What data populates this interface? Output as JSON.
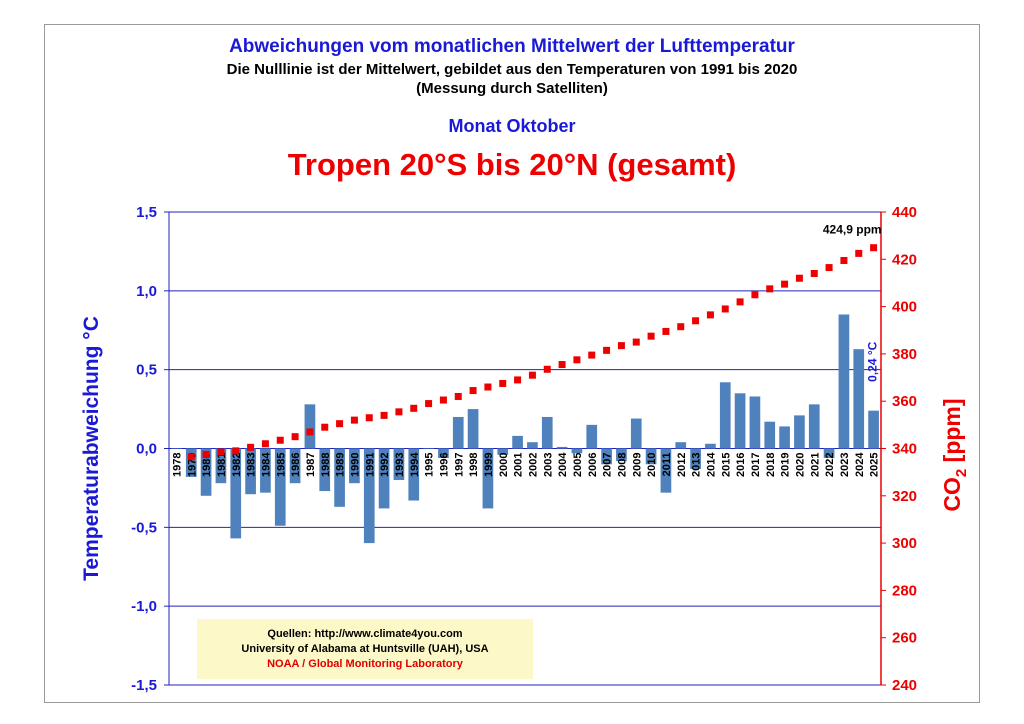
{
  "title": "Abweichungen vom monatlichen Mittelwert der Lufttemperatur",
  "subtitle_1": "Die Nulllinie ist der Mittelwert, gebildet aus den Temperaturen von 1991 bis 2020",
  "subtitle_2": "(Messung durch Satelliten)",
  "month_title": "Monat Oktober",
  "region_title": "Tropen 20°S bis 20°N  (gesamt)",
  "sources": {
    "line1": "Quellen: http://www.climate4you.com",
    "line2": "University of Alabama at Huntsville (UAH), USA",
    "line3": "NOAA / Global Monitoring Laboratory"
  },
  "colors": {
    "bar": "#4f81bd",
    "co2": "#ee0000",
    "axis_left": "#1a1ad6",
    "axis_right": "#ee0000",
    "grid": "#2222bb",
    "source_bg": "#fdf8c8"
  },
  "chart_data": {
    "type": "bar",
    "ylabel": "Temperaturabweichung °C",
    "y2label_main": "CO",
    "y2label_sub": "2",
    "y2label_unit": " [ppm]",
    "ylim": [
      -1.5,
      1.5
    ],
    "y_ticks": [
      "1,5",
      "1,0",
      "0,5",
      "0,0",
      "-0,5",
      "-1,0",
      "-1,5"
    ],
    "y2lim": [
      240,
      440
    ],
    "y2_ticks": [
      "440",
      "420",
      "400",
      "380",
      "360",
      "340",
      "320",
      "300",
      "280",
      "260",
      "240"
    ],
    "grid": true,
    "categories": [
      "1978",
      "1979",
      "1980",
      "1981",
      "1982",
      "1983",
      "1984",
      "1985",
      "1986",
      "1987",
      "1988",
      "1989",
      "1990",
      "1991",
      "1992",
      "1993",
      "1994",
      "1995",
      "1996",
      "1997",
      "1998",
      "1999",
      "2000",
      "2001",
      "2002",
      "2003",
      "2004",
      "2005",
      "2006",
      "2007",
      "2008",
      "2009",
      "2010",
      "2011",
      "2012",
      "2013",
      "2014",
      "2015",
      "2016",
      "2017",
      "2018",
      "2019",
      "2020",
      "2021",
      "2022",
      "2023",
      "2024",
      "2025"
    ],
    "series": [
      {
        "name": "Temperaturabweichung",
        "axis": "left",
        "values": [
          0.0,
          -0.18,
          -0.3,
          -0.22,
          -0.57,
          -0.29,
          -0.28,
          -0.49,
          -0.22,
          0.28,
          -0.27,
          -0.37,
          -0.22,
          -0.6,
          -0.38,
          -0.2,
          -0.33,
          0.0,
          -0.06,
          0.2,
          0.25,
          -0.38,
          -0.04,
          0.08,
          0.04,
          0.2,
          0.01,
          -0.03,
          0.15,
          -0.1,
          -0.08,
          0.19,
          -0.1,
          -0.28,
          0.04,
          -0.13,
          0.03,
          0.42,
          0.35,
          0.33,
          0.17,
          0.14,
          0.21,
          0.28,
          -0.06,
          0.85,
          0.63,
          0.24
        ]
      },
      {
        "name": "CO2",
        "axis": "right",
        "values": [
          null,
          336.5,
          337.5,
          338.5,
          339.0,
          340.5,
          342.0,
          343.5,
          345.0,
          347.0,
          349.0,
          350.5,
          352.0,
          353.0,
          354.0,
          355.5,
          357.0,
          359.0,
          360.5,
          362.0,
          364.5,
          366.0,
          367.5,
          369.0,
          371.0,
          373.5,
          375.5,
          377.5,
          379.5,
          381.5,
          383.5,
          385.0,
          387.5,
          389.5,
          391.5,
          394.0,
          396.5,
          399.0,
          402.0,
          405.0,
          407.5,
          409.5,
          412.0,
          414.0,
          416.5,
          419.5,
          422.5,
          424.9
        ]
      }
    ],
    "co2_annotation": "424,9 ppm",
    "last_value_annotation": "0,24 °C"
  }
}
